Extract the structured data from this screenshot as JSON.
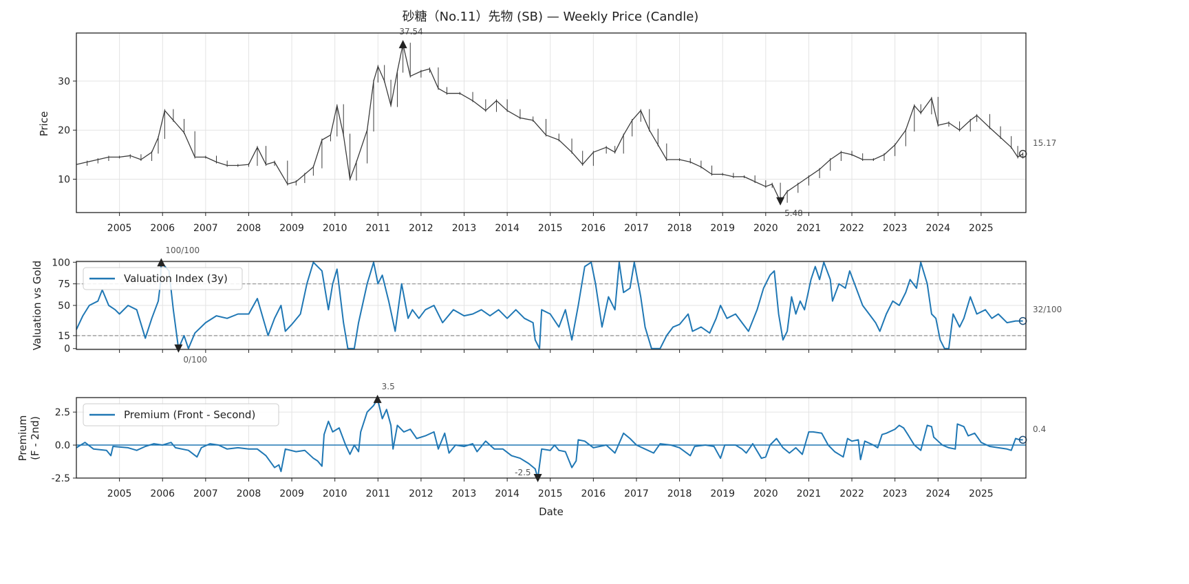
{
  "chart_data": [
    {
      "type": "line",
      "title": "砂糖（No.11）先物 (SB) — Weekly Price (Candle)",
      "xlabel": "",
      "ylabel": "Price",
      "xlim": [
        2004.0,
        2026.04
      ],
      "ylim": [
        3.2,
        39.8
      ],
      "yticks": [
        10,
        20,
        30
      ],
      "xticks": [
        2005,
        2006,
        2007,
        2008,
        2009,
        2010,
        2011,
        2012,
        2013,
        2014,
        2015,
        2016,
        2017,
        2018,
        2019,
        2020,
        2021,
        2022,
        2023,
        2024,
        2025
      ],
      "grid": true,
      "color": "#3a3a3a",
      "series": [
        {
          "x": [
            2004.0,
            2004.25,
            2004.5,
            2004.75,
            2005.0,
            2005.25,
            2005.5,
            2005.75,
            2005.9,
            2006.05,
            2006.25,
            2006.5,
            2006.75,
            2007.0,
            2007.25,
            2007.5,
            2007.75,
            2008.0,
            2008.2,
            2008.4,
            2008.6,
            2008.9,
            2009.1,
            2009.3,
            2009.5,
            2009.7,
            2009.9,
            2010.05,
            2010.2,
            2010.35,
            2010.5,
            2010.75,
            2010.9,
            2011.0,
            2011.15,
            2011.3,
            2011.45,
            2011.58,
            2011.75,
            2012.0,
            2012.2,
            2012.4,
            2012.6,
            2012.9,
            2013.2,
            2013.5,
            2013.75,
            2014.0,
            2014.3,
            2014.6,
            2014.9,
            2015.2,
            2015.5,
            2015.75,
            2016.0,
            2016.3,
            2016.5,
            2016.7,
            2016.9,
            2017.1,
            2017.3,
            2017.5,
            2017.7,
            2018.0,
            2018.25,
            2018.5,
            2018.75,
            2019.0,
            2019.25,
            2019.5,
            2019.75,
            2020.0,
            2020.15,
            2020.34,
            2020.5,
            2020.75,
            2021.0,
            2021.25,
            2021.5,
            2021.75,
            2022.0,
            2022.25,
            2022.5,
            2022.75,
            2023.0,
            2023.25,
            2023.45,
            2023.6,
            2023.85,
            2024.0,
            2024.25,
            2024.5,
            2024.75,
            2024.9,
            2025.2,
            2025.45,
            2025.7,
            2025.85,
            2025.97
          ],
          "y": [
            13,
            13.5,
            14,
            14.5,
            14.5,
            14.8,
            14,
            15.5,
            18.5,
            24,
            22,
            19.5,
            14.5,
            14.5,
            13.5,
            12.8,
            12.8,
            13,
            16.5,
            13,
            13.5,
            9,
            9.5,
            11,
            12.5,
            18,
            19,
            25,
            19,
            10,
            13.5,
            20,
            30,
            33,
            30,
            25,
            32,
            37.54,
            31,
            32,
            32.5,
            28.5,
            27.5,
            27.5,
            26,
            24,
            26,
            24,
            22.5,
            22,
            19,
            18,
            15.5,
            13,
            15.5,
            16.5,
            15.5,
            19,
            22,
            24,
            20,
            17,
            14,
            14,
            13.5,
            12.5,
            11,
            11,
            10.5,
            10.5,
            9.5,
            8.5,
            9,
            5.48,
            7.5,
            9,
            10.5,
            12,
            14,
            15.5,
            15,
            14,
            14,
            15,
            17,
            20,
            25,
            23.5,
            26.5,
            21,
            21.5,
            20,
            22,
            23,
            20.5,
            18.5,
            16.5,
            14.5,
            15.17
          ]
        }
      ],
      "annotations": {
        "max": {
          "x": 2011.58,
          "y": 37.54,
          "label": "37.54"
        },
        "min": {
          "x": 2020.34,
          "y": 5.48,
          "label": "5.48"
        },
        "last": {
          "label": "15.17"
        }
      }
    },
    {
      "type": "line",
      "ylabel": "Valuation vs Gold",
      "xlim": [
        2004.0,
        2026.04
      ],
      "ylim": [
        -1,
        101
      ],
      "yticks": [
        0,
        15,
        50,
        75,
        100
      ],
      "hlines": [
        15,
        75
      ],
      "grid": true,
      "color": "#1f77b4",
      "legend": {
        "position": "upper-left",
        "entries": [
          "Valuation Index (3y)"
        ]
      },
      "series": [
        {
          "name": "Valuation Index (3y)",
          "x": [
            2004.0,
            2004.15,
            2004.3,
            2004.5,
            2004.6,
            2004.75,
            2004.9,
            2005.0,
            2005.2,
            2005.4,
            2005.6,
            2005.75,
            2005.9,
            2005.95,
            2005.97,
            2006.15,
            2006.25,
            2006.37,
            2006.5,
            2006.6,
            2006.75,
            2007.0,
            2007.25,
            2007.5,
            2007.75,
            2008.0,
            2008.2,
            2008.45,
            2008.6,
            2008.75,
            2008.85,
            2009.0,
            2009.2,
            2009.35,
            2009.5,
            2009.7,
            2009.85,
            2009.95,
            2010.05,
            2010.2,
            2010.3,
            2010.45,
            2010.55,
            2010.75,
            2010.9,
            2011.0,
            2011.1,
            2011.25,
            2011.4,
            2011.55,
            2011.7,
            2011.8,
            2011.95,
            2012.1,
            2012.3,
            2012.5,
            2012.75,
            2013.0,
            2013.2,
            2013.4,
            2013.6,
            2013.8,
            2014.0,
            2014.2,
            2014.4,
            2014.6,
            2014.65,
            2014.75,
            2014.8,
            2015.0,
            2015.2,
            2015.35,
            2015.5,
            2015.65,
            2015.8,
            2015.95,
            2016.05,
            2016.2,
            2016.35,
            2016.5,
            2016.6,
            2016.7,
            2016.85,
            2016.95,
            2017.1,
            2017.2,
            2017.35,
            2017.55,
            2017.7,
            2017.85,
            2018.0,
            2018.2,
            2018.3,
            2018.5,
            2018.7,
            2018.85,
            2018.95,
            2019.1,
            2019.3,
            2019.45,
            2019.6,
            2019.8,
            2019.95,
            2020.1,
            2020.2,
            2020.3,
            2020.4,
            2020.5,
            2020.6,
            2020.7,
            2020.8,
            2020.9,
            2021.05,
            2021.15,
            2021.25,
            2021.35,
            2021.5,
            2021.55,
            2021.7,
            2021.85,
            2021.95,
            2022.1,
            2022.25,
            2022.4,
            2022.55,
            2022.65,
            2022.8,
            2022.95,
            2023.1,
            2023.25,
            2023.35,
            2023.5,
            2023.6,
            2023.75,
            2023.85,
            2023.95,
            2024.05,
            2024.15,
            2024.25,
            2024.35,
            2024.5,
            2024.6,
            2024.75,
            2024.9,
            2025.1,
            2025.25,
            2025.4,
            2025.6,
            2025.8,
            2025.97
          ],
          "y": [
            22,
            38,
            50,
            55,
            68,
            50,
            45,
            40,
            50,
            45,
            12,
            35,
            55,
            75,
            100,
            90,
            45,
            0,
            15,
            0,
            18,
            30,
            38,
            35,
            40,
            40,
            58,
            15,
            35,
            50,
            20,
            28,
            40,
            75,
            100,
            90,
            45,
            75,
            92,
            30,
            0,
            0,
            30,
            75,
            100,
            75,
            85,
            55,
            20,
            75,
            35,
            45,
            35,
            45,
            50,
            30,
            45,
            38,
            40,
            45,
            38,
            45,
            35,
            45,
            35,
            30,
            10,
            0,
            45,
            40,
            25,
            45,
            10,
            50,
            95,
            100,
            75,
            25,
            60,
            45,
            100,
            65,
            70,
            100,
            60,
            25,
            0,
            0,
            15,
            25,
            28,
            40,
            20,
            25,
            18,
            35,
            50,
            35,
            40,
            30,
            20,
            45,
            70,
            85,
            90,
            40,
            10,
            20,
            60,
            40,
            55,
            45,
            80,
            95,
            80,
            100,
            80,
            55,
            75,
            70,
            90,
            70,
            50,
            40,
            30,
            20,
            40,
            55,
            50,
            65,
            80,
            70,
            100,
            75,
            40,
            35,
            10,
            0,
            0,
            40,
            25,
            35,
            60,
            40,
            45,
            35,
            40,
            30,
            32,
            32
          ]
        }
      ],
      "annotations": {
        "max": {
          "x": 2005.97,
          "y": 100,
          "label": "100/100"
        },
        "min": {
          "x": 2006.37,
          "y": 0,
          "label": "0/100"
        },
        "last": {
          "label": "32/100"
        }
      }
    },
    {
      "type": "line",
      "xlabel": "Date",
      "ylabel": "Premium\n(F - 2nd)",
      "ylabel_lines": [
        "Premium",
        "(F - 2nd)"
      ],
      "xlim": [
        2004.0,
        2026.04
      ],
      "ylim": [
        -2.5,
        3.6
      ],
      "yticks": [
        -2.5,
        0.0,
        2.5
      ],
      "ytick_labels": [
        "-2.5",
        "0.0",
        "2.5"
      ],
      "xticks": [
        2005,
        2006,
        2007,
        2008,
        2009,
        2010,
        2011,
        2012,
        2013,
        2014,
        2015,
        2016,
        2017,
        2018,
        2019,
        2020,
        2021,
        2022,
        2023,
        2024,
        2025
      ],
      "hlines": [
        0
      ],
      "grid": true,
      "color": "#1f77b4",
      "legend": {
        "position": "upper-left",
        "entries": [
          "Premium (Front - Second)"
        ]
      },
      "series": [
        {
          "name": "Premium (Front - Second)",
          "x": [
            2004.0,
            2004.2,
            2004.4,
            2004.7,
            2004.8,
            2004.85,
            2005.2,
            2005.4,
            2005.6,
            2005.8,
            2006.0,
            2006.2,
            2006.3,
            2006.6,
            2006.8,
            2006.9,
            2007.1,
            2007.3,
            2007.5,
            2007.75,
            2008.0,
            2008.2,
            2008.4,
            2008.6,
            2008.7,
            2008.75,
            2008.85,
            2009.1,
            2009.3,
            2009.5,
            2009.6,
            2009.7,
            2009.75,
            2009.85,
            2009.95,
            2010.1,
            2010.25,
            2010.35,
            2010.45,
            2010.55,
            2010.6,
            2010.75,
            2010.9,
            2010.99,
            2011.1,
            2011.2,
            2011.3,
            2011.35,
            2011.45,
            2011.6,
            2011.75,
            2011.9,
            2012.1,
            2012.3,
            2012.4,
            2012.55,
            2012.65,
            2012.8,
            2013.0,
            2013.2,
            2013.3,
            2013.5,
            2013.7,
            2013.9,
            2014.1,
            2014.3,
            2014.5,
            2014.65,
            2014.71,
            2014.8,
            2015.0,
            2015.1,
            2015.2,
            2015.35,
            2015.5,
            2015.6,
            2015.65,
            2015.8,
            2016.0,
            2016.3,
            2016.5,
            2016.7,
            2016.85,
            2017.0,
            2017.2,
            2017.4,
            2017.55,
            2017.8,
            2018.0,
            2018.25,
            2018.35,
            2018.6,
            2018.8,
            2018.95,
            2019.05,
            2019.3,
            2019.45,
            2019.55,
            2019.7,
            2019.9,
            2020.0,
            2020.1,
            2020.25,
            2020.4,
            2020.55,
            2020.7,
            2020.85,
            2021.0,
            2021.1,
            2021.3,
            2021.45,
            2021.6,
            2021.8,
            2021.9,
            2022.0,
            2022.15,
            2022.2,
            2022.3,
            2022.5,
            2022.6,
            2022.7,
            2022.8,
            2023.0,
            2023.1,
            2023.2,
            2023.3,
            2023.45,
            2023.6,
            2023.75,
            2023.85,
            2023.9,
            2024.0,
            2024.1,
            2024.25,
            2024.4,
            2024.45,
            2024.6,
            2024.7,
            2024.85,
            2025.0,
            2025.2,
            2025.4,
            2025.6,
            2025.7,
            2025.8,
            2025.9,
            2025.97
          ],
          "y": [
            -0.2,
            0.2,
            -0.3,
            -0.4,
            -0.8,
            -0.1,
            -0.2,
            -0.4,
            -0.1,
            0.1,
            0.0,
            0.2,
            -0.2,
            -0.4,
            -0.9,
            -0.2,
            0.1,
            0.0,
            -0.3,
            -0.2,
            -0.3,
            -0.3,
            -0.8,
            -1.7,
            -1.5,
            -2.0,
            -0.3,
            -0.5,
            -0.4,
            -1.0,
            -1.2,
            -1.6,
            0.8,
            1.8,
            1.0,
            1.3,
            0.0,
            -0.7,
            0.0,
            -0.5,
            1.0,
            2.5,
            3.0,
            3.5,
            2.0,
            2.7,
            1.5,
            -0.3,
            1.5,
            1.0,
            1.2,
            0.5,
            0.7,
            1.0,
            -0.3,
            0.9,
            -0.6,
            0.0,
            -0.1,
            0.1,
            -0.5,
            0.3,
            -0.3,
            -0.3,
            -0.8,
            -1.0,
            -1.4,
            -1.8,
            -2.5,
            -0.3,
            -0.4,
            0.0,
            -0.4,
            -0.5,
            -1.7,
            -1.2,
            0.4,
            0.3,
            -0.2,
            0.0,
            -0.6,
            0.9,
            0.5,
            0.0,
            -0.3,
            -0.6,
            0.1,
            0.0,
            -0.2,
            -0.8,
            -0.1,
            0.0,
            -0.1,
            -1.0,
            0.0,
            0.0,
            -0.3,
            -0.6,
            0.1,
            -1.0,
            -0.9,
            0.0,
            0.5,
            -0.2,
            -0.6,
            -0.2,
            -0.7,
            1.0,
            1.0,
            0.9,
            0.0,
            -0.5,
            -0.9,
            0.5,
            0.3,
            0.4,
            -1.1,
            0.3,
            0.0,
            -0.2,
            0.8,
            0.9,
            1.2,
            1.5,
            1.3,
            0.8,
            0.0,
            -0.4,
            1.5,
            1.4,
            0.6,
            0.3,
            0.0,
            -0.2,
            -0.3,
            1.6,
            1.4,
            0.7,
            0.9,
            0.2,
            -0.1,
            -0.2,
            -0.3,
            -0.4,
            0.5,
            0.4,
            0.4
          ]
        }
      ],
      "annotations": {
        "max": {
          "x": 2010.99,
          "y": 3.5,
          "label": "3.5"
        },
        "min": {
          "x": 2014.71,
          "y": -2.5,
          "label": "-2.5"
        },
        "last": {
          "label": "0.4"
        }
      }
    }
  ]
}
